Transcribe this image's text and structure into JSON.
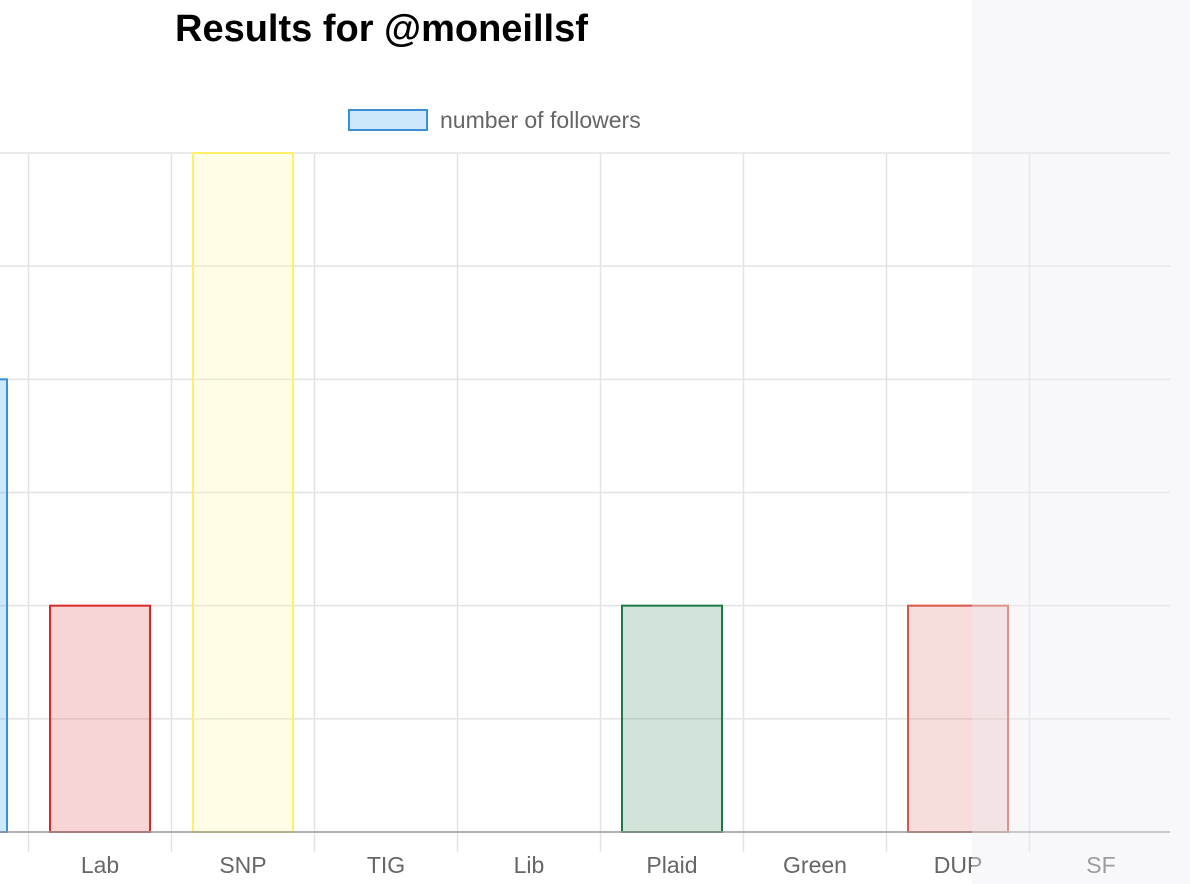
{
  "page": {
    "title": "Results for @moneillsf"
  },
  "chart_data": {
    "type": "bar",
    "categories": [
      "",
      "Lab",
      "SNP",
      "TIG",
      "Lib",
      "Plaid",
      "Green",
      "DUP",
      "SF"
    ],
    "series": [
      {
        "name": "number of followers",
        "values": [
          2,
          1,
          3,
          0,
          0,
          1,
          0,
          1,
          0
        ],
        "colors": [
          {
            "border": "#3b8fd6",
            "fill": "rgba(54,162,235,0.25)"
          },
          {
            "border": "#d62b2b",
            "fill": "rgba(214,43,43,0.2)"
          },
          {
            "border": "#fff06a",
            "fill": "rgba(255,248,150,0.25)"
          },
          {
            "border": "#999999",
            "fill": "rgba(0,0,0,0)"
          },
          {
            "border": "#999999",
            "fill": "rgba(0,0,0,0)"
          },
          {
            "border": "#1d7a45",
            "fill": "rgba(29,122,69,0.2)"
          },
          {
            "border": "#999999",
            "fill": "rgba(0,0,0,0)"
          },
          {
            "border": "#d9544a",
            "fill": "rgba(217,84,74,0.2)"
          },
          {
            "border": "#999999",
            "fill": "rgba(0,0,0,0)"
          }
        ]
      }
    ],
    "ylim": [
      0,
      3
    ],
    "y_gridlines": 6,
    "grid": true,
    "legend": "top-center",
    "title": "",
    "xlabel": "",
    "ylabel": ""
  }
}
